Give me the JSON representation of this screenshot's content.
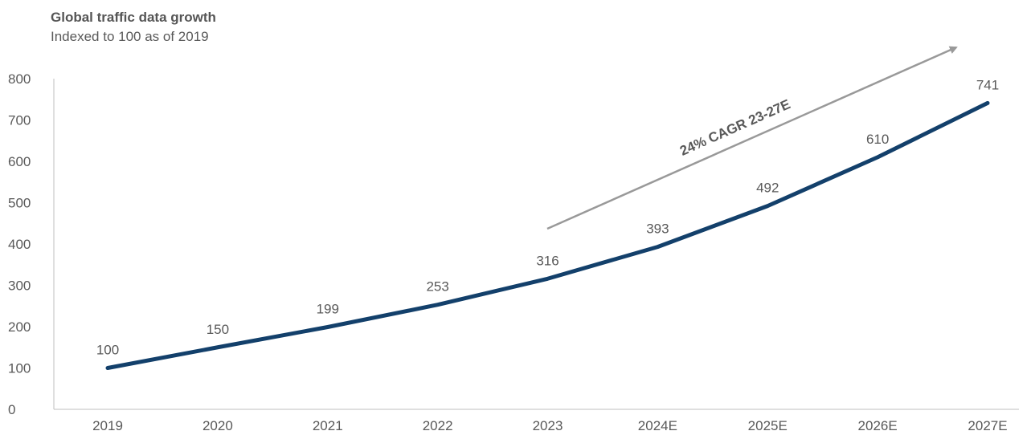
{
  "chart_data": {
    "type": "line",
    "title": "Global traffic data growth",
    "subtitle": "Indexed to 100 as of 2019",
    "categories": [
      "2019",
      "2020",
      "2021",
      "2022",
      "2023",
      "2024E",
      "2025E",
      "2026E",
      "2027E"
    ],
    "series": [
      {
        "values": [
          100,
          150,
          199,
          253,
          316,
          393,
          492,
          610,
          741
        ],
        "color": "#13406b"
      }
    ],
    "ylim": [
      0,
      800
    ],
    "yticks": [
      0,
      100,
      200,
      300,
      400,
      500,
      600,
      700,
      800
    ],
    "grid": false,
    "annotation": {
      "text": "24% CAGR 23-27E",
      "color": "#999999"
    }
  }
}
